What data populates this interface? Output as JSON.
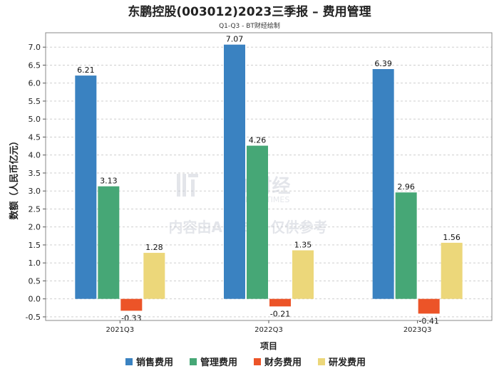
{
  "chart_data": {
    "type": "bar",
    "title": "东鹏控股(003012)2023三季报 – 费用管理",
    "subtitle": "Q1-Q3 - BT财经绘制",
    "xlabel": "项目",
    "ylabel": "数额（人民币亿元）",
    "categories": [
      "2021Q3",
      "2022Q3",
      "2023Q3"
    ],
    "series": [
      {
        "name": "销售费用",
        "color": "#3a82c1",
        "values": [
          6.21,
          7.07,
          6.39
        ]
      },
      {
        "name": "管理费用",
        "color": "#46a776",
        "values": [
          3.13,
          4.26,
          2.96
        ]
      },
      {
        "name": "财务费用",
        "color": "#ec5428",
        "values": [
          -0.33,
          -0.21,
          -0.41
        ]
      },
      {
        "name": "研发费用",
        "color": "#ecd77a",
        "values": [
          1.28,
          1.35,
          1.56
        ]
      }
    ],
    "ylim": [
      -0.6,
      7.4
    ],
    "yticks": [
      -0.5,
      0.0,
      0.5,
      1.0,
      1.5,
      2.0,
      2.5,
      3.0,
      3.5,
      4.0,
      4.5,
      5.0,
      5.5,
      6.0,
      6.5,
      7.0
    ],
    "grid": true,
    "legend": "bottom"
  },
  "watermark": {
    "brand": "BT财经",
    "brand_en": "BUSINESSTIMES",
    "notice": "内容由AI生成，仅供参考"
  }
}
